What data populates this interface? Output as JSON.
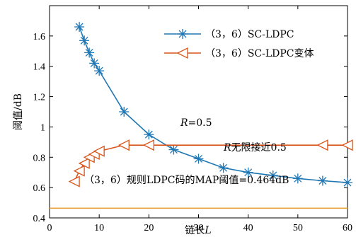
{
  "chart_data": {
    "type": "line",
    "xlabel": "链长",
    "xlabel_var": "L",
    "ylabel": "阈值/dB",
    "xlim": [
      0,
      60
    ],
    "ylim": [
      0.4,
      1.8
    ],
    "xticks": [
      "0",
      "10",
      "20",
      "30",
      "40",
      "50",
      "60"
    ],
    "yticks": [
      "0.4",
      "0.6",
      "0.8",
      "1",
      "1.2",
      "1.4",
      "1.6"
    ],
    "grid": false,
    "legend_position": "top-right",
    "series": [
      {
        "name": "（3，6）SC-LDPC",
        "color": "#1f77b4",
        "marker": "asterisk",
        "x": [
          6,
          7,
          8,
          9,
          10,
          15,
          20,
          25,
          30,
          35,
          40,
          45,
          50,
          55,
          60
        ],
        "y": [
          1.66,
          1.57,
          1.49,
          1.42,
          1.37,
          1.1,
          0.95,
          0.85,
          0.79,
          0.73,
          0.7,
          0.68,
          0.66,
          0.645,
          0.633
        ]
      },
      {
        "name": "（3，6）SC-LDPC变体",
        "color": "#d9541a",
        "marker": "triangle-left",
        "x": [
          5,
          6,
          7,
          8,
          9,
          10,
          15,
          20,
          55,
          60
        ],
        "y": [
          0.64,
          0.71,
          0.76,
          0.8,
          0.82,
          0.84,
          0.88,
          0.88,
          0.88,
          0.88
        ]
      }
    ],
    "reference_line": {
      "y": 0.464,
      "color": "#e8a33d",
      "label": "（3，6）规则LDPC码的MAP阈值=0.464dB"
    },
    "annotations": {
      "r_label_var": "R",
      "r_label_text": "=0.5",
      "r_inf_var": "R",
      "r_inf_text": "无限接近0.5"
    }
  }
}
